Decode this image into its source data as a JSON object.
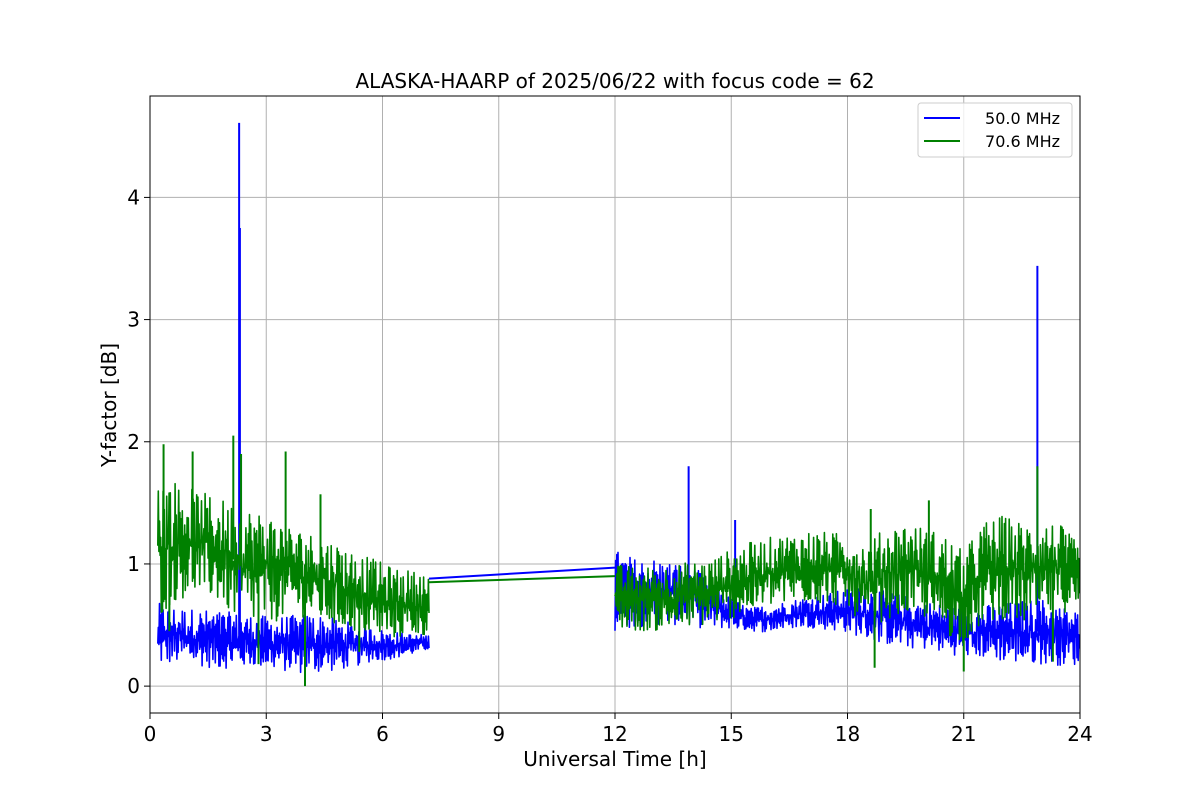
{
  "chart_data": {
    "type": "line",
    "title": "ALASKA-HAARP of 2025/06/22 with focus code = 62",
    "xlabel": "Universal Time [h]",
    "ylabel": "Y-factor [dB]",
    "xlim": [
      0,
      24
    ],
    "ylim": [
      -0.22,
      4.83
    ],
    "xticks": [
      0,
      3,
      6,
      9,
      12,
      15,
      18,
      21,
      24
    ],
    "xtick_labels": [
      "0",
      "3",
      "6",
      "9",
      "12",
      "15",
      "18",
      "21",
      "24"
    ],
    "yticks": [
      0,
      1,
      2,
      3,
      4
    ],
    "ytick_labels": [
      "0",
      "1",
      "2",
      "3",
      "4"
    ],
    "grid": true,
    "legend_position": "top-right",
    "series": [
      {
        "name": "50.0 MHz",
        "color": "#0000ff",
        "segments": [
          {
            "x": [
              0.2,
              0.7,
              1.2,
              1.7,
              2.2,
              2.7,
              3.2,
              3.7,
              4.2,
              4.7,
              5.2,
              5.7,
              6.2,
              6.7,
              7.2
            ],
            "low": [
              0.16,
              0.18,
              0.17,
              0.14,
              0.15,
              0.16,
              0.13,
              0.11,
              0.1,
              0.12,
              0.15,
              0.2,
              0.22,
              0.25,
              0.3
            ],
            "high": [
              0.68,
              0.65,
              0.63,
              0.62,
              0.6,
              0.58,
              0.57,
              0.58,
              0.6,
              0.56,
              0.52,
              0.48,
              0.45,
              0.43,
              0.42
            ]
          },
          {
            "x": [
              12.0,
              12.5,
              13.0,
              13.5,
              14.0,
              14.5,
              15.0,
              15.5,
              16.0,
              16.5,
              17.0,
              17.5,
              18.0,
              18.5,
              19.0,
              19.5,
              20.0,
              20.5,
              21.0,
              21.5,
              22.0,
              22.5,
              23.0,
              23.5,
              24.0
            ],
            "low": [
              0.45,
              0.48,
              0.5,
              0.5,
              0.48,
              0.47,
              0.47,
              0.45,
              0.44,
              0.47,
              0.48,
              0.46,
              0.44,
              0.38,
              0.34,
              0.31,
              0.3,
              0.27,
              0.24,
              0.23,
              0.2,
              0.18,
              0.18,
              0.17,
              0.17
            ],
            "high": [
              1.12,
              1.05,
              1.05,
              1.02,
              0.99,
              0.85,
              0.72,
              0.64,
              0.67,
              0.7,
              0.74,
              0.76,
              0.8,
              0.82,
              0.78,
              0.74,
              0.7,
              0.67,
              0.64,
              0.66,
              0.68,
              0.7,
              0.72,
              0.66,
              0.62
            ]
          }
        ],
        "bridge": {
          "x": [
            7.2,
            12.0
          ],
          "y": [
            0.88,
            0.97
          ]
        },
        "spikes": [
          {
            "x": 2.3,
            "y": 4.61
          },
          {
            "x": 2.32,
            "y": 3.75
          },
          {
            "x": 13.9,
            "y": 1.8
          },
          {
            "x": 15.1,
            "y": 1.36
          },
          {
            "x": 22.9,
            "y": 3.44
          }
        ]
      },
      {
        "name": "70.6 MHz",
        "color": "#008000",
        "segments": [
          {
            "x": [
              0.2,
              0.7,
              1.2,
              1.7,
              2.2,
              2.7,
              3.2,
              3.7,
              4.2,
              4.7,
              5.2,
              5.7,
              6.2,
              6.7,
              7.2
            ],
            "low": [
              0.55,
              0.7,
              0.75,
              0.7,
              0.55,
              0.5,
              0.52,
              0.58,
              0.55,
              0.48,
              0.45,
              0.4,
              0.38,
              0.4,
              0.42
            ],
            "high": [
              1.75,
              1.68,
              1.6,
              1.55,
              1.5,
              1.45,
              1.4,
              1.3,
              1.25,
              1.2,
              1.12,
              1.05,
              0.98,
              0.95,
              0.92
            ]
          },
          {
            "x": [
              12.0,
              12.5,
              13.0,
              13.5,
              14.0,
              14.5,
              15.0,
              15.5,
              16.0,
              16.5,
              17.0,
              17.5,
              18.0,
              18.5,
              19.0,
              19.5,
              20.0,
              20.5,
              21.0,
              21.5,
              22.0,
              22.5,
              23.0,
              23.5,
              24.0
            ],
            "low": [
              0.46,
              0.45,
              0.45,
              0.46,
              0.48,
              0.5,
              0.55,
              0.6,
              0.65,
              0.66,
              0.68,
              0.67,
              0.65,
              0.45,
              0.55,
              0.58,
              0.55,
              0.42,
              0.35,
              0.5,
              0.55,
              0.5,
              0.55,
              0.6,
              0.62
            ],
            "high": [
              1.0,
              0.98,
              0.98,
              1.0,
              1.02,
              1.05,
              1.12,
              1.18,
              1.22,
              1.25,
              1.28,
              1.26,
              1.25,
              1.18,
              1.3,
              1.35,
              1.3,
              1.25,
              1.1,
              1.35,
              1.4,
              1.35,
              1.38,
              1.32,
              1.15
            ]
          }
        ],
        "bridge": {
          "x": [
            7.2,
            12.0
          ],
          "y": [
            0.85,
            0.9
          ]
        },
        "spikes": [
          {
            "x": 0.35,
            "y": 1.98
          },
          {
            "x": 1.1,
            "y": 1.92
          },
          {
            "x": 2.15,
            "y": 2.05
          },
          {
            "x": 2.35,
            "y": 1.9
          },
          {
            "x": 3.5,
            "y": 1.92
          },
          {
            "x": 4.4,
            "y": 1.57
          },
          {
            "x": 18.6,
            "y": 1.45
          },
          {
            "x": 20.1,
            "y": 1.52
          },
          {
            "x": 22.9,
            "y": 1.8
          }
        ],
        "dips": [
          {
            "x": 0.5,
            "y": 0.45
          },
          {
            "x": 2.8,
            "y": 0.18
          },
          {
            "x": 4.0,
            "y": 0.0
          },
          {
            "x": 5.4,
            "y": 0.28
          },
          {
            "x": 18.7,
            "y": 0.15
          },
          {
            "x": 21.0,
            "y": 0.12
          },
          {
            "x": 23.3,
            "y": 0.2
          }
        ]
      }
    ]
  }
}
